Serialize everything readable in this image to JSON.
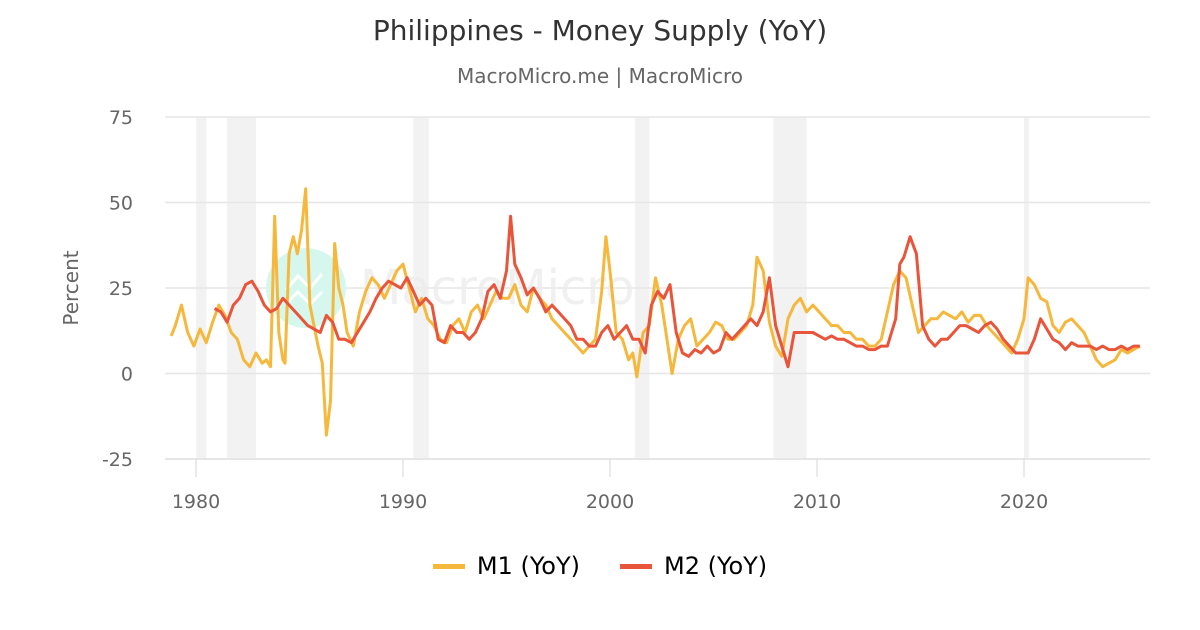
{
  "header": {
    "title": "Philippines - Money Supply (YoY)",
    "subtitle": "MacroMicro.me | MacroMicro"
  },
  "watermark": "MacroMicro",
  "legend": [
    {
      "label": "M1 (YoY)",
      "color": "#F5B83D"
    },
    {
      "label": "M2 (YoY)",
      "color": "#E8553A"
    }
  ],
  "colors": {
    "m1": "#F5B83D",
    "m2": "#E8553A",
    "grid": "#E6E6E6",
    "recession": "#F2F2F2",
    "axis_text": "#666666"
  },
  "chart_data": {
    "type": "line",
    "title": "Philippines - Money Supply (YoY)",
    "subtitle": "MacroMicro.me | MacroMicro",
    "xlabel": "",
    "ylabel": "Percent",
    "ylim": [
      -25,
      75
    ],
    "xlim": [
      1978.6,
      2025.8
    ],
    "y_ticks": [
      75,
      50,
      25,
      0,
      -25
    ],
    "x_ticks": [
      1980,
      1990,
      2000,
      2010,
      2020
    ],
    "grid": true,
    "legend_position": "bottom",
    "recession_bands": [
      [
        1980.0,
        1980.5
      ],
      [
        1981.5,
        1982.9
      ],
      [
        1990.5,
        1991.25
      ],
      [
        2001.2,
        2001.9
      ],
      [
        2007.9,
        2009.5
      ],
      [
        2020.0,
        2020.25
      ]
    ],
    "series": [
      {
        "name": "M1 (YoY)",
        "color": "#F5B83D",
        "x": [
          1978.8,
          1979.0,
          1979.3,
          1979.6,
          1979.9,
          1980.2,
          1980.5,
          1980.8,
          1981.1,
          1981.4,
          1981.7,
          1982.0,
          1982.3,
          1982.6,
          1982.9,
          1983.2,
          1983.4,
          1983.6,
          1983.8,
          1984.0,
          1984.2,
          1984.3,
          1984.5,
          1984.7,
          1984.9,
          1985.1,
          1985.3,
          1985.5,
          1985.7,
          1985.9,
          1986.1,
          1986.3,
          1986.5,
          1986.7,
          1986.9,
          1987.1,
          1987.3,
          1987.6,
          1987.9,
          1988.2,
          1988.5,
          1988.8,
          1989.1,
          1989.4,
          1989.7,
          1990.0,
          1990.3,
          1990.6,
          1990.9,
          1991.2,
          1991.5,
          1991.8,
          1992.1,
          1992.4,
          1992.7,
          1993.0,
          1993.3,
          1993.6,
          1993.9,
          1994.2,
          1994.5,
          1994.8,
          1995.1,
          1995.4,
          1995.7,
          1996.0,
          1996.3,
          1996.6,
          1996.9,
          1997.2,
          1997.5,
          1997.8,
          1998.1,
          1998.4,
          1998.7,
          1999.0,
          1999.3,
          1999.6,
          1999.8,
          2000.0,
          2000.3,
          2000.6,
          2000.9,
          2001.1,
          2001.3,
          2001.6,
          2001.9,
          2002.2,
          2002.5,
          2002.8,
          2003.0,
          2003.3,
          2003.6,
          2003.9,
          2004.2,
          2004.5,
          2004.8,
          2005.1,
          2005.4,
          2005.7,
          2006.0,
          2006.3,
          2006.6,
          2006.9,
          2007.1,
          2007.4,
          2007.7,
          2008.0,
          2008.3,
          2008.6,
          2008.9,
          2009.2,
          2009.5,
          2009.8,
          2010.1,
          2010.4,
          2010.7,
          2011.0,
          2011.3,
          2011.6,
          2011.9,
          2012.2,
          2012.5,
          2012.8,
          2013.1,
          2013.4,
          2013.7,
          2014.0,
          2014.3,
          2014.6,
          2014.9,
          2015.2,
          2015.5,
          2015.8,
          2016.1,
          2016.4,
          2016.7,
          2017.0,
          2017.3,
          2017.6,
          2017.9,
          2018.2,
          2018.5,
          2018.8,
          2019.1,
          2019.4,
          2019.7,
          2020.0,
          2020.2,
          2020.5,
          2020.8,
          2021.1,
          2021.4,
          2021.7,
          2022.0,
          2022.3,
          2022.6,
          2022.9,
          2023.2,
          2023.5,
          2023.8,
          2024.1,
          2024.4,
          2024.7,
          2025.0,
          2025.3,
          2025.6
        ],
        "values": [
          11,
          14,
          20,
          12,
          8,
          13,
          9,
          15,
          20,
          17,
          12,
          10,
          4,
          2,
          6,
          3,
          4,
          2,
          46,
          12,
          4,
          3,
          35,
          40,
          35,
          42,
          54,
          20,
          14,
          8,
          3,
          -18,
          -8,
          38,
          25,
          20,
          12,
          8,
          18,
          24,
          28,
          26,
          22,
          26,
          30,
          32,
          25,
          18,
          22,
          16,
          14,
          10,
          9,
          14,
          16,
          12,
          18,
          20,
          16,
          20,
          24,
          22,
          22,
          26,
          20,
          18,
          25,
          22,
          20,
          16,
          14,
          12,
          10,
          8,
          6,
          8,
          10,
          24,
          40,
          30,
          12,
          10,
          4,
          6,
          -1,
          12,
          14,
          28,
          20,
          8,
          0,
          10,
          14,
          16,
          8,
          10,
          12,
          15,
          14,
          10,
          10,
          12,
          14,
          20,
          34,
          30,
          15,
          8,
          5,
          16,
          20,
          22,
          18,
          20,
          18,
          16,
          14,
          14,
          12,
          12,
          10,
          10,
          8,
          8,
          10,
          18,
          26,
          30,
          28,
          20,
          12,
          14,
          16,
          16,
          18,
          17,
          16,
          18,
          15,
          17,
          17,
          14,
          12,
          10,
          8,
          6,
          10,
          16,
          28,
          26,
          22,
          21,
          14,
          12,
          15,
          16,
          14,
          12,
          8,
          4,
          2,
          3,
          4,
          7,
          6,
          7,
          8
        ],
        "note": "values approximated from pixel positions"
      },
      {
        "name": "M2 (YoY)",
        "color": "#E8553A",
        "x": [
          1980.9,
          1981.2,
          1981.5,
          1981.8,
          1982.1,
          1982.4,
          1982.7,
          1983.0,
          1983.3,
          1983.6,
          1983.9,
          1984.2,
          1984.5,
          1984.8,
          1985.1,
          1985.4,
          1985.7,
          1986.0,
          1986.3,
          1986.6,
          1986.9,
          1987.2,
          1987.5,
          1987.8,
          1988.1,
          1988.4,
          1988.7,
          1989.0,
          1989.3,
          1989.6,
          1989.9,
          1990.2,
          1990.5,
          1990.8,
          1991.1,
          1991.4,
          1991.7,
          1992.0,
          1992.3,
          1992.6,
          1992.9,
          1993.2,
          1993.5,
          1993.8,
          1994.1,
          1994.4,
          1994.7,
          1995.0,
          1995.2,
          1995.4,
          1995.7,
          1996.0,
          1996.3,
          1996.6,
          1996.9,
          1997.2,
          1997.5,
          1997.8,
          1998.1,
          1998.4,
          1998.7,
          1999.0,
          1999.3,
          1999.6,
          1999.9,
          2000.2,
          2000.5,
          2000.8,
          2001.1,
          2001.4,
          2001.7,
          2002.0,
          2002.3,
          2002.6,
          2002.9,
          2003.2,
          2003.5,
          2003.8,
          2004.1,
          2004.4,
          2004.7,
          2005.0,
          2005.3,
          2005.6,
          2005.9,
          2006.2,
          2006.5,
          2006.8,
          2007.1,
          2007.4,
          2007.7,
          2008.0,
          2008.3,
          2008.6,
          2008.9,
          2009.2,
          2009.5,
          2009.8,
          2010.1,
          2010.4,
          2010.7,
          2011.0,
          2011.3,
          2011.6,
          2011.9,
          2012.2,
          2012.5,
          2012.8,
          2013.1,
          2013.4,
          2013.6,
          2013.8,
          2014.0,
          2014.2,
          2014.5,
          2014.8,
          2015.1,
          2015.4,
          2015.7,
          2016.0,
          2016.3,
          2016.6,
          2016.9,
          2017.2,
          2017.5,
          2017.8,
          2018.1,
          2018.4,
          2018.7,
          2019.0,
          2019.3,
          2019.6,
          2019.9,
          2020.2,
          2020.5,
          2020.8,
          2021.1,
          2021.4,
          2021.7,
          2022.0,
          2022.3,
          2022.6,
          2022.9,
          2023.2,
          2023.5,
          2023.8,
          2024.1,
          2024.4,
          2024.7,
          2025.0,
          2025.3,
          2025.6
        ],
        "values": [
          19,
          18,
          15,
          20,
          22,
          26,
          27,
          24,
          20,
          18,
          19,
          22,
          20,
          18,
          16,
          14,
          13,
          12,
          17,
          15,
          10,
          10,
          9,
          12,
          15,
          18,
          22,
          25,
          27,
          26,
          25,
          28,
          24,
          20,
          22,
          20,
          10,
          9,
          14,
          12,
          12,
          10,
          12,
          16,
          24,
          26,
          22,
          30,
          46,
          32,
          28,
          23,
          25,
          22,
          18,
          20,
          18,
          16,
          14,
          10,
          10,
          8,
          8,
          12,
          14,
          10,
          12,
          14,
          10,
          10,
          6,
          20,
          24,
          22,
          26,
          12,
          6,
          5,
          7,
          6,
          8,
          6,
          7,
          12,
          10,
          12,
          14,
          16,
          14,
          18,
          28,
          14,
          8,
          2,
          12,
          12,
          12,
          12,
          11,
          10,
          11,
          10,
          10,
          9,
          8,
          8,
          7,
          7,
          8,
          8,
          12,
          16,
          32,
          34,
          40,
          35,
          14,
          10,
          8,
          10,
          10,
          12,
          14,
          14,
          13,
          12,
          14,
          15,
          13,
          10,
          8,
          6,
          6,
          6,
          10,
          16,
          13,
          10,
          9,
          7,
          9,
          8,
          8,
          8,
          7,
          8,
          7,
          7,
          8,
          7,
          8,
          8
        ],
        "note": "values approximated from pixel positions"
      }
    ]
  }
}
